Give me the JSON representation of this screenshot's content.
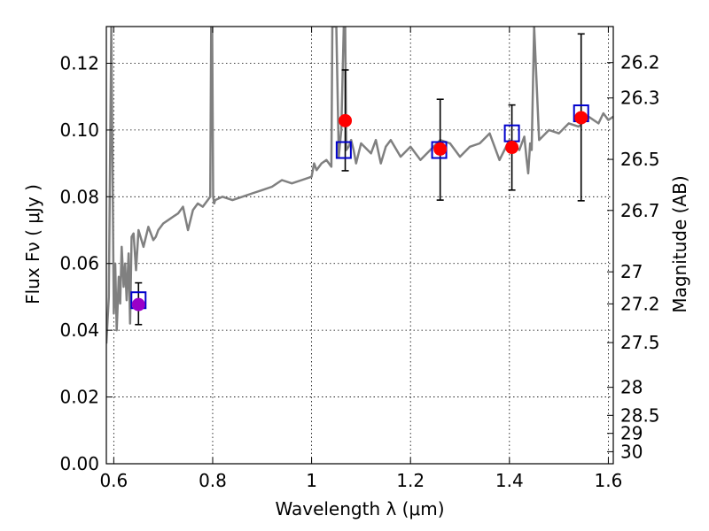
{
  "chart_data": {
    "type": "scatter",
    "xlabel": "Wavelength  λ (μm)",
    "ylabel": "Flux  Fν  ( μJy )",
    "ylabel_right": "Magnitude (AB)",
    "xlim": [
      0.585,
      1.61
    ],
    "ylim": [
      0.0,
      0.131
    ],
    "grid": true,
    "x_ticks": [
      0.6,
      0.8,
      1.0,
      1.2,
      1.4,
      1.6
    ],
    "x_tick_labels": [
      "0.6",
      "0.8",
      "1",
      "1.2",
      "1.4",
      "1.6"
    ],
    "y_ticks": [
      0.0,
      0.02,
      0.04,
      0.06,
      0.08,
      0.1,
      0.12
    ],
    "y_tick_labels": [
      "0.00",
      "0.02",
      "0.04",
      "0.06",
      "0.08",
      "0.10",
      "0.12"
    ],
    "right_axis_ticks": [
      {
        "label": "26.2",
        "flux": 0.1202
      },
      {
        "label": "26.3",
        "flux": 0.1096
      },
      {
        "label": "26.5",
        "flux": 0.0912
      },
      {
        "label": "26.7",
        "flux": 0.0759
      },
      {
        "label": "27",
        "flux": 0.0575
      },
      {
        "label": "27.2",
        "flux": 0.0479
      },
      {
        "label": "27.5",
        "flux": 0.0363
      },
      {
        "label": "28",
        "flux": 0.0229
      },
      {
        "label": "28.5",
        "flux": 0.0145
      },
      {
        "label": "29",
        "flux": 0.0091
      },
      {
        "label": "30",
        "flux": 0.0036
      }
    ],
    "series": [
      {
        "kind": "model_spectrum",
        "color": "#808080",
        "x": [
          0.585,
          0.59,
          0.595,
          0.6,
          0.603,
          0.606,
          0.61,
          0.613,
          0.616,
          0.62,
          0.623,
          0.626,
          0.63,
          0.633,
          0.636,
          0.64,
          0.645,
          0.65,
          0.66,
          0.67,
          0.68,
          0.685,
          0.69,
          0.7,
          0.71,
          0.72,
          0.73,
          0.74,
          0.75,
          0.76,
          0.77,
          0.78,
          0.79,
          0.795,
          0.797,
          0.799,
          0.801,
          0.803,
          0.805,
          0.82,
          0.84,
          0.86,
          0.88,
          0.9,
          0.92,
          0.94,
          0.96,
          0.98,
          1.0,
          1.005,
          1.01,
          1.02,
          1.03,
          1.04,
          1.042,
          1.045,
          1.05,
          1.055,
          1.06,
          1.065,
          1.068,
          1.07,
          1.075,
          1.08,
          1.085,
          1.09,
          1.1,
          1.12,
          1.13,
          1.14,
          1.15,
          1.16,
          1.18,
          1.2,
          1.22,
          1.24,
          1.26,
          1.28,
          1.3,
          1.32,
          1.34,
          1.36,
          1.38,
          1.4,
          1.42,
          1.43,
          1.435,
          1.438,
          1.442,
          1.445,
          1.45,
          1.46,
          1.48,
          1.5,
          1.52,
          1.54,
          1.56,
          1.58,
          1.59,
          1.6,
          1.61
        ],
        "y": [
          0.036,
          0.05,
          0.131,
          0.045,
          0.06,
          0.04,
          0.056,
          0.048,
          0.065,
          0.053,
          0.06,
          0.049,
          0.063,
          0.042,
          0.068,
          0.069,
          0.058,
          0.07,
          0.065,
          0.071,
          0.067,
          0.068,
          0.07,
          0.072,
          0.073,
          0.074,
          0.075,
          0.077,
          0.07,
          0.076,
          0.078,
          0.077,
          0.079,
          0.08,
          0.131,
          0.131,
          0.08,
          0.078,
          0.079,
          0.08,
          0.079,
          0.08,
          0.081,
          0.082,
          0.083,
          0.085,
          0.084,
          0.085,
          0.086,
          0.09,
          0.088,
          0.09,
          0.091,
          0.089,
          0.131,
          0.131,
          0.131,
          0.092,
          0.1,
          0.131,
          0.131,
          0.094,
          0.095,
          0.097,
          0.094,
          0.09,
          0.096,
          0.093,
          0.097,
          0.09,
          0.095,
          0.097,
          0.092,
          0.095,
          0.091,
          0.094,
          0.097,
          0.096,
          0.092,
          0.095,
          0.096,
          0.099,
          0.091,
          0.097,
          0.094,
          0.098,
          0.091,
          0.087,
          0.096,
          0.094,
          0.131,
          0.097,
          0.1,
          0.099,
          0.102,
          0.101,
          0.104,
          0.102,
          0.105,
          0.103,
          0.104
        ]
      },
      {
        "kind": "model_photometry",
        "marker": "square",
        "edge_color": "#0000cc",
        "x": [
          0.65,
          1.065,
          1.258,
          1.405,
          1.545
        ],
        "y": [
          0.049,
          0.094,
          0.094,
          0.099,
          0.105
        ]
      },
      {
        "kind": "observed_photometry",
        "marker": "circle",
        "colors": [
          "#9a00c8",
          "#ff0000",
          "#ff0000",
          "#ff0000",
          "#ff0000"
        ],
        "x": [
          0.65,
          1.068,
          1.26,
          1.405,
          1.545
        ],
        "y": [
          0.0477,
          0.1028,
          0.0943,
          0.0948,
          0.1037
        ],
        "err_low": [
          0.006,
          0.015,
          0.0153,
          0.0128,
          0.0249
        ],
        "err_high": [
          0.0065,
          0.0152,
          0.0149,
          0.0127,
          0.0251
        ]
      }
    ]
  }
}
